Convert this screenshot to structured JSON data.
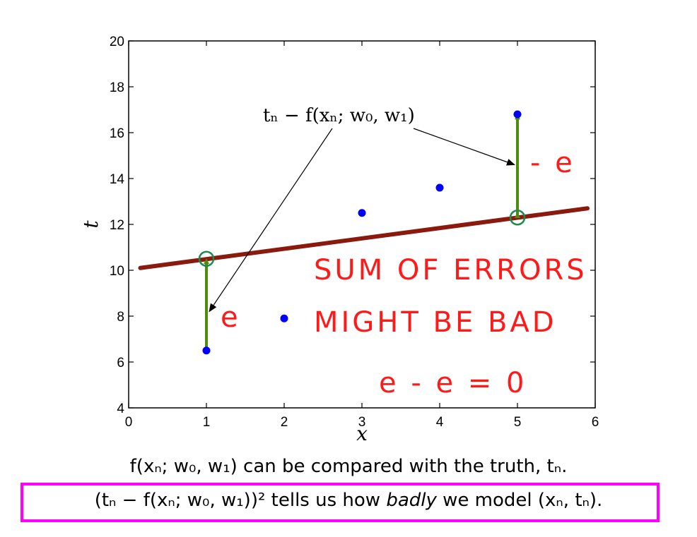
{
  "chart_data": {
    "type": "scatter",
    "xlabel": "x",
    "ylabel": "t",
    "xlim": [
      0,
      6
    ],
    "ylim": [
      4,
      20
    ],
    "xticks": [
      0,
      1,
      2,
      3,
      4,
      5,
      6
    ],
    "yticks": [
      4,
      6,
      8,
      10,
      12,
      14,
      16,
      18,
      20
    ],
    "points": {
      "x": [
        1,
        2,
        3,
        4,
        5
      ],
      "y": [
        6.5,
        7.9,
        12.5,
        13.6,
        16.8
      ]
    },
    "fit_line": {
      "x": [
        0.15,
        5.9
      ],
      "y": [
        10.1,
        12.7
      ]
    },
    "highlighted_fit_points": [
      {
        "x": 1,
        "y": 10.5
      },
      {
        "x": 5,
        "y": 12.3
      }
    ],
    "error_arrows": [
      {
        "x": 1,
        "from": 6.6,
        "to": 10.4
      },
      {
        "x": 5,
        "from": 12.4,
        "to": 16.7
      }
    ],
    "annotation_formula": "tₙ − f(xₙ; w₀, w₁)",
    "handwriting": {
      "neg_e": "- e",
      "e": "e",
      "line1": "SUM OF ERRORS",
      "line2": "MIGHT BE BAD",
      "line3": "e - e = 0"
    },
    "colors": {
      "points": "#0000ff",
      "line": "#8b1a0e",
      "arrows": "#4d8c0d",
      "circles": "#1e8a4e",
      "handwriting": "#ff1a1a"
    }
  },
  "caption": {
    "line1": "f(xₙ; w₀, w₁) can be compared with the truth, tₙ.",
    "line2_pre": "(tₙ − f(xₙ; w₀, w₁))² tells us how ",
    "line2_em": "badly",
    "line2_post": " we model (xₙ, tₙ).",
    "box_color": "#ff00ff"
  }
}
